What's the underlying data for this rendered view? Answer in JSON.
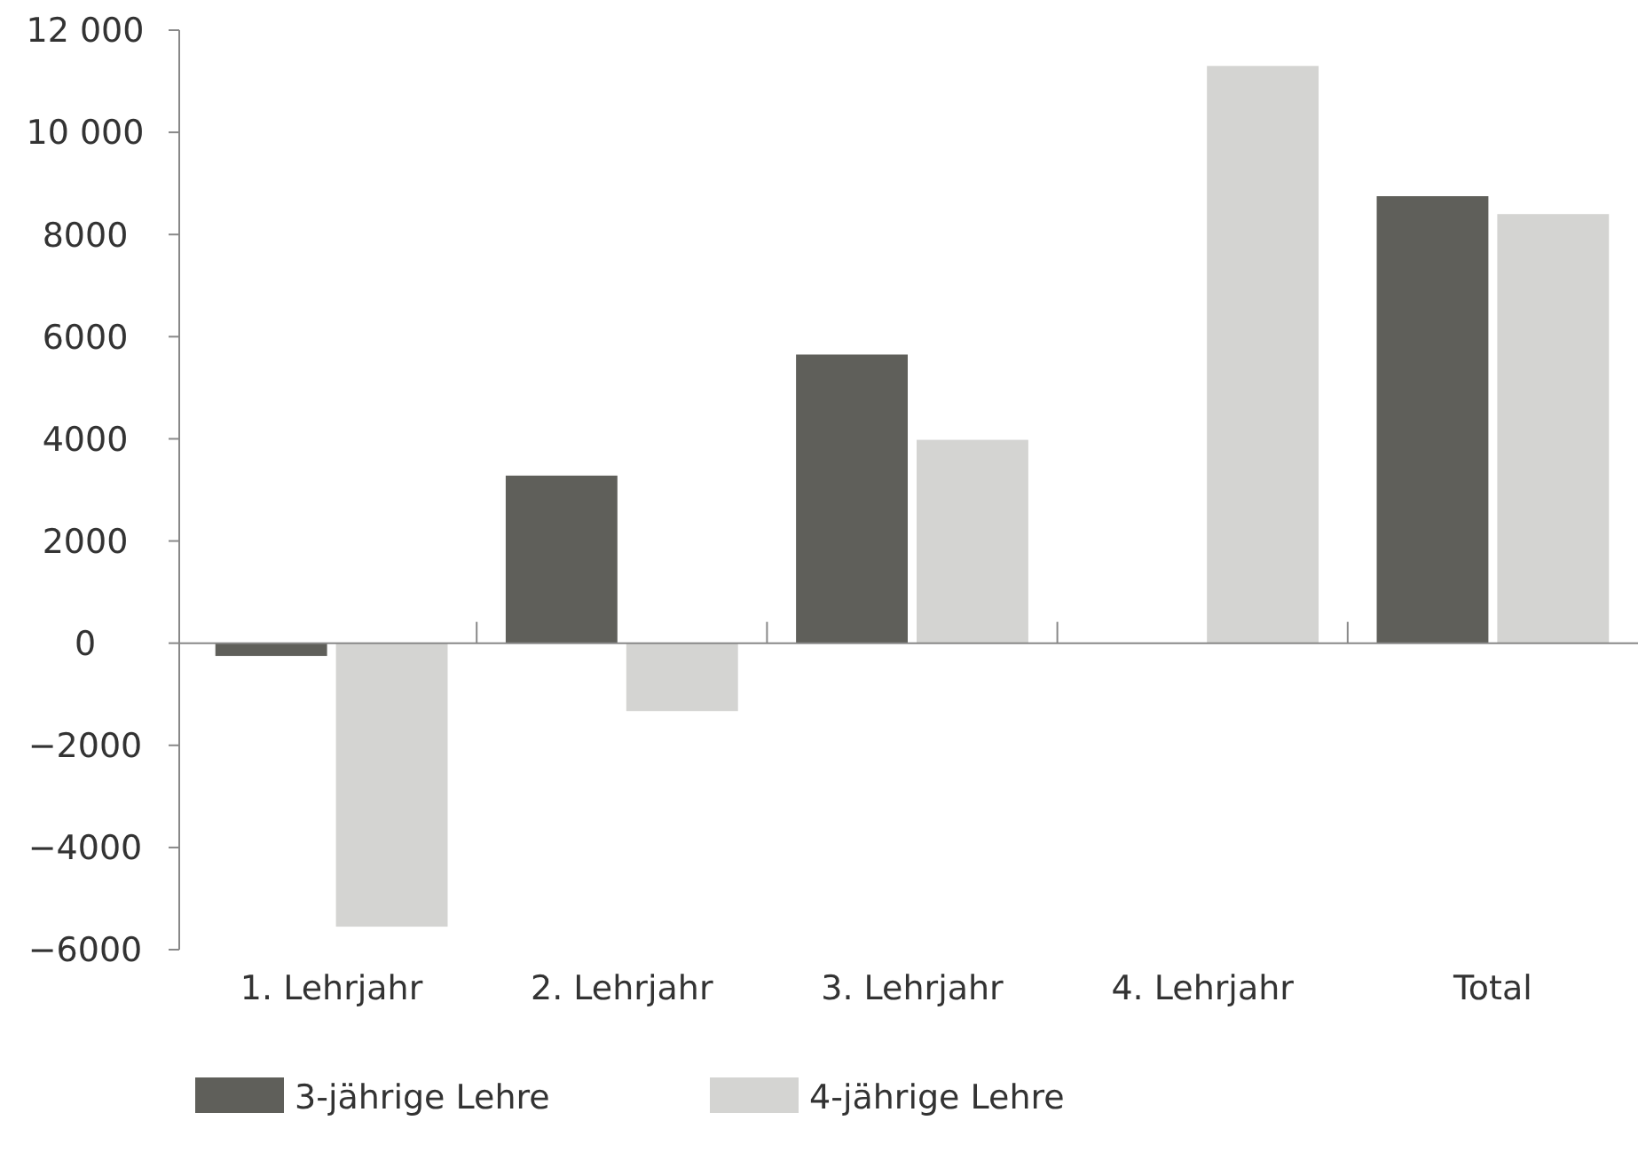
{
  "chart_data": {
    "type": "bar",
    "categories": [
      "1. Lehrjahr",
      "2. Lehrjahr",
      "3. Lehrjahr",
      "4. Lehrjahr",
      "Total"
    ],
    "series": [
      {
        "name": "3-jährige Lehre",
        "color": "#5f5f5a",
        "values": [
          -250,
          3280,
          5650,
          null,
          8750
        ]
      },
      {
        "name": "4-jährige Lehre",
        "color": "#d4d4d2",
        "values": [
          -5550,
          -1330,
          3980,
          11300,
          8400
        ]
      }
    ],
    "ylim": [
      -6000,
      12000
    ],
    "yticks": [
      {
        "value": -6000,
        "label": "−6000"
      },
      {
        "value": -4000,
        "label": "−4000"
      },
      {
        "value": -2000,
        "label": "−2000"
      },
      0,
      2000,
      4000,
      6000,
      8000,
      {
        "value": 10000,
        "label": "10 000"
      },
      {
        "value": 12000,
        "label": "12 000"
      }
    ],
    "legend": "bottom"
  }
}
